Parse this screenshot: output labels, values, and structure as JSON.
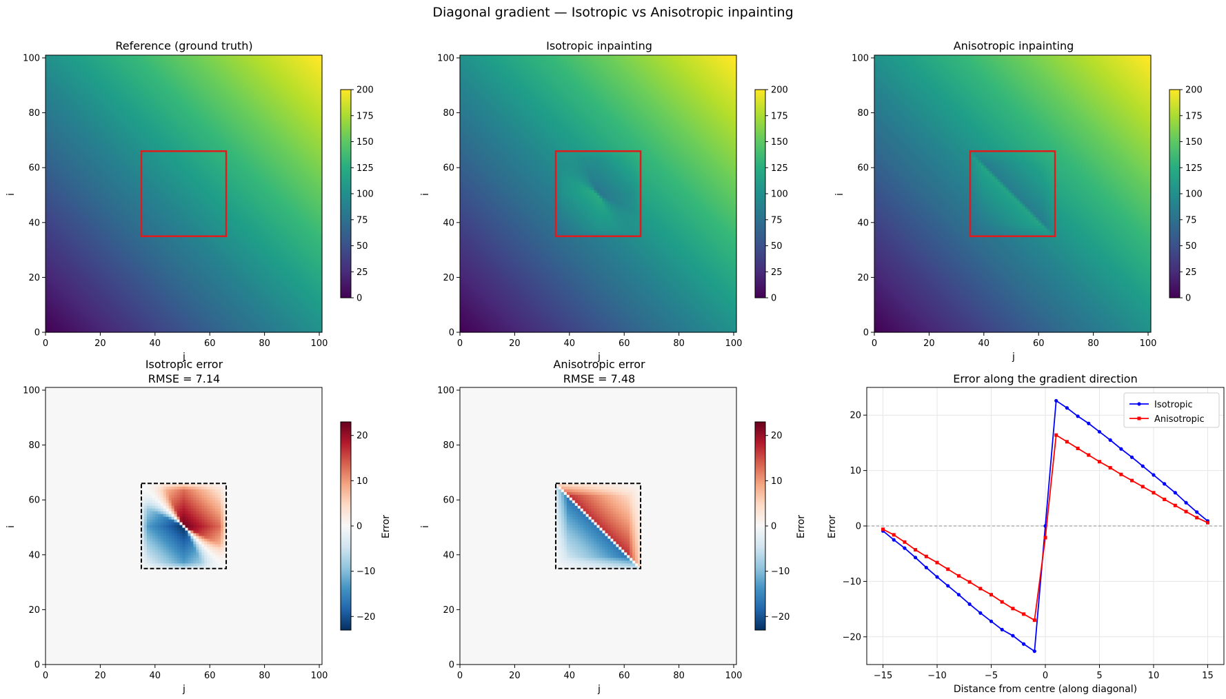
{
  "figure": {
    "suptitle": "Diagonal gradient — Isotropic vs Anisotropic inpainting"
  },
  "panels": {
    "reference": {
      "title": "Reference (ground truth)",
      "ylabel": "i",
      "xlabel": "j"
    },
    "isotropic": {
      "title": "Isotropic inpainting",
      "ylabel": "i",
      "xlabel": "j"
    },
    "anisotropic": {
      "title": "Anisotropic inpainting",
      "ylabel": "i",
      "xlabel": "j"
    },
    "iso_error": {
      "title_line1": "Isotropic error",
      "title_line2": "RMSE = 7.14",
      "ylabel": "i",
      "xlabel": "j"
    },
    "aniso_error": {
      "title_line1": "Anisotropic error",
      "title_line2": "RMSE = 7.48",
      "ylabel": "i",
      "xlabel": "j"
    },
    "profile": {
      "title": "Error along the gradient direction",
      "xlabel": "Distance from centre (along diagonal)",
      "ylabel": "Error"
    }
  },
  "colorbars": {
    "viridis_label": "",
    "error_label": "Error"
  },
  "chart_data": [
    {
      "type": "heatmap",
      "name": "reference",
      "title": "Reference (ground truth)",
      "xlabel": "j",
      "ylabel": "i",
      "xlim": [
        0,
        101
      ],
      "ylim": [
        0,
        101
      ],
      "xticks": [
        0,
        20,
        40,
        60,
        80,
        100
      ],
      "yticks": [
        0,
        20,
        40,
        60,
        80,
        100
      ],
      "colormap": "viridis",
      "clim": [
        0,
        200
      ],
      "cbar_ticks": [
        0,
        25,
        50,
        75,
        100,
        125,
        150,
        175,
        200
      ],
      "field": "value = i + j",
      "mask_box": {
        "j": [
          35,
          66
        ],
        "i": [
          35,
          66
        ],
        "color": "#e31a1c"
      }
    },
    {
      "type": "heatmap",
      "name": "isotropic",
      "title": "Isotropic inpainting",
      "xlabel": "j",
      "ylabel": "i",
      "xlim": [
        0,
        101
      ],
      "ylim": [
        0,
        101
      ],
      "xticks": [
        0,
        20,
        40,
        60,
        80,
        100
      ],
      "yticks": [
        0,
        20,
        40,
        60,
        80,
        100
      ],
      "colormap": "viridis",
      "clim": [
        0,
        200
      ],
      "cbar_ticks": [
        0,
        25,
        50,
        75,
        100,
        125,
        150,
        175,
        200
      ],
      "mask_box": {
        "j": [
          35,
          66
        ],
        "i": [
          35,
          66
        ],
        "color": "#e31a1c"
      }
    },
    {
      "type": "heatmap",
      "name": "anisotropic",
      "title": "Anisotropic inpainting",
      "xlabel": "j",
      "ylabel": "i",
      "xlim": [
        0,
        101
      ],
      "ylim": [
        0,
        101
      ],
      "xticks": [
        0,
        20,
        40,
        60,
        80,
        100
      ],
      "yticks": [
        0,
        20,
        40,
        60,
        80,
        100
      ],
      "colormap": "viridis",
      "clim": [
        0,
        200
      ],
      "cbar_ticks": [
        0,
        25,
        50,
        75,
        100,
        125,
        150,
        175,
        200
      ],
      "mask_box": {
        "j": [
          35,
          66
        ],
        "i": [
          35,
          66
        ],
        "color": "#e31a1c"
      }
    },
    {
      "type": "heatmap",
      "name": "iso_error",
      "title": "Isotropic error\nRMSE = 7.14",
      "xlabel": "j",
      "ylabel": "i",
      "xlim": [
        0,
        101
      ],
      "ylim": [
        0,
        101
      ],
      "xticks": [
        0,
        20,
        40,
        60,
        80,
        100
      ],
      "yticks": [
        0,
        20,
        40,
        60,
        80,
        100
      ],
      "colormap": "RdBu_r",
      "clim": [
        -23,
        23
      ],
      "cbar_ticks": [
        -20,
        -10,
        0,
        10,
        20
      ],
      "cbar_label": "Error",
      "max_abs_error": 22.6,
      "mask_box": {
        "j": [
          35,
          66
        ],
        "i": [
          35,
          66
        ],
        "style": "dashed"
      }
    },
    {
      "type": "heatmap",
      "name": "aniso_error",
      "title": "Anisotropic error\nRMSE = 7.48",
      "xlabel": "j",
      "ylabel": "i",
      "xlim": [
        0,
        101
      ],
      "ylim": [
        0,
        101
      ],
      "xticks": [
        0,
        20,
        40,
        60,
        80,
        100
      ],
      "yticks": [
        0,
        20,
        40,
        60,
        80,
        100
      ],
      "colormap": "RdBu_r",
      "clim": [
        -23,
        23
      ],
      "cbar_ticks": [
        -20,
        -10,
        0,
        10,
        20
      ],
      "cbar_label": "Error",
      "max_abs_error": 17.0,
      "mask_box": {
        "j": [
          35,
          66
        ],
        "i": [
          35,
          66
        ],
        "style": "dashed"
      }
    },
    {
      "type": "line",
      "name": "profile",
      "title": "Error along the gradient direction",
      "xlabel": "Distance from centre (along diagonal)",
      "ylabel": "Error",
      "xlim": [
        -16.5,
        16.5
      ],
      "ylim": [
        -25,
        25
      ],
      "xticks": [
        -15,
        -10,
        -5,
        0,
        5,
        10,
        15
      ],
      "yticks": [
        -20,
        -10,
        0,
        10,
        20
      ],
      "grid": true,
      "legend": "top-right",
      "zero_line": {
        "y": 0,
        "style": "dashed",
        "color": "#888888"
      },
      "x": [
        -15,
        -14,
        -13,
        -12,
        -11,
        -10,
        -9,
        -8,
        -7,
        -6,
        -5,
        -4,
        -3,
        -2,
        -1,
        0,
        1,
        2,
        3,
        4,
        5,
        6,
        7,
        8,
        9,
        10,
        11,
        12,
        13,
        14,
        15
      ],
      "series": [
        {
          "name": "Isotropic",
          "color": "#0000ff",
          "marker": "circle",
          "values": [
            -0.9,
            -2.5,
            -4.0,
            -5.7,
            -7.5,
            -9.2,
            -10.8,
            -12.4,
            -14.1,
            -15.7,
            -17.2,
            -18.7,
            -19.8,
            -21.3,
            -22.6,
            0.0,
            22.6,
            21.3,
            19.8,
            18.5,
            17.0,
            15.5,
            13.9,
            12.4,
            10.8,
            9.2,
            7.6,
            6.0,
            4.2,
            2.5,
            0.9
          ]
        },
        {
          "name": "Anisotropic",
          "color": "#ff0000",
          "marker": "square",
          "values": [
            -0.6,
            -1.6,
            -2.9,
            -4.3,
            -5.5,
            -6.6,
            -7.8,
            -9.0,
            -10.1,
            -11.3,
            -12.4,
            -13.7,
            -14.9,
            -15.9,
            -17.0,
            -2.1,
            16.4,
            15.2,
            14.0,
            12.8,
            11.6,
            10.5,
            9.3,
            8.2,
            7.1,
            6.0,
            4.8,
            3.7,
            2.6,
            1.5,
            0.6
          ]
        }
      ]
    }
  ]
}
